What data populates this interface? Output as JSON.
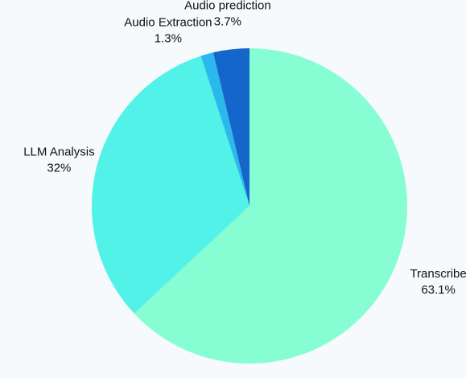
{
  "chart_data": {
    "type": "pie",
    "title": "",
    "start_angle_deg": 0,
    "direction": "clockwise",
    "slices": [
      {
        "label": "Transcribe",
        "value": 63.1,
        "display": "63.1%",
        "color": "#86fdd2",
        "label_side": "right"
      },
      {
        "label": "LLM Analysis",
        "value": 32,
        "display": "32%",
        "color": "#52f2e8",
        "label_side": "left"
      },
      {
        "label": "Audio Extraction",
        "value": 1.3,
        "display": "1.3%",
        "color": "#2bb8ec",
        "label_side": "left"
      },
      {
        "label": "Audio prediction",
        "value": 3.7,
        "display": "3.7%",
        "color": "#1566cb",
        "label_side": "center"
      }
    ],
    "legend": "none"
  }
}
